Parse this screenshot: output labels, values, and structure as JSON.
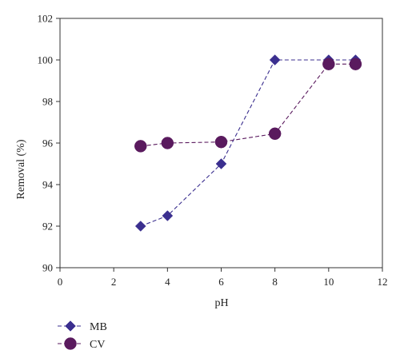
{
  "chart_data": {
    "type": "line",
    "title": "",
    "xlabel": "pH",
    "ylabel": "Removal (%)",
    "xlim": [
      0,
      12
    ],
    "ylim": [
      90,
      102
    ],
    "xticks": [
      0,
      2,
      4,
      6,
      8,
      10,
      12
    ],
    "yticks": [
      90,
      92,
      94,
      96,
      98,
      100,
      102
    ],
    "grid": false,
    "legend_position": "bottom-left",
    "series": [
      {
        "name": "MB",
        "marker": "diamond",
        "line_style": "dashed",
        "color": "#3b2f8f",
        "x": [
          3,
          4,
          6,
          8,
          10,
          11
        ],
        "y": [
          92.0,
          92.5,
          95.0,
          100.0,
          100.0,
          100.0
        ]
      },
      {
        "name": "CV",
        "marker": "circle",
        "line_style": "dashed",
        "color": "#5a1a5e",
        "x": [
          3,
          4,
          6,
          8,
          10,
          11
        ],
        "y": [
          95.85,
          96.0,
          96.05,
          96.45,
          99.8,
          99.8
        ]
      }
    ]
  }
}
